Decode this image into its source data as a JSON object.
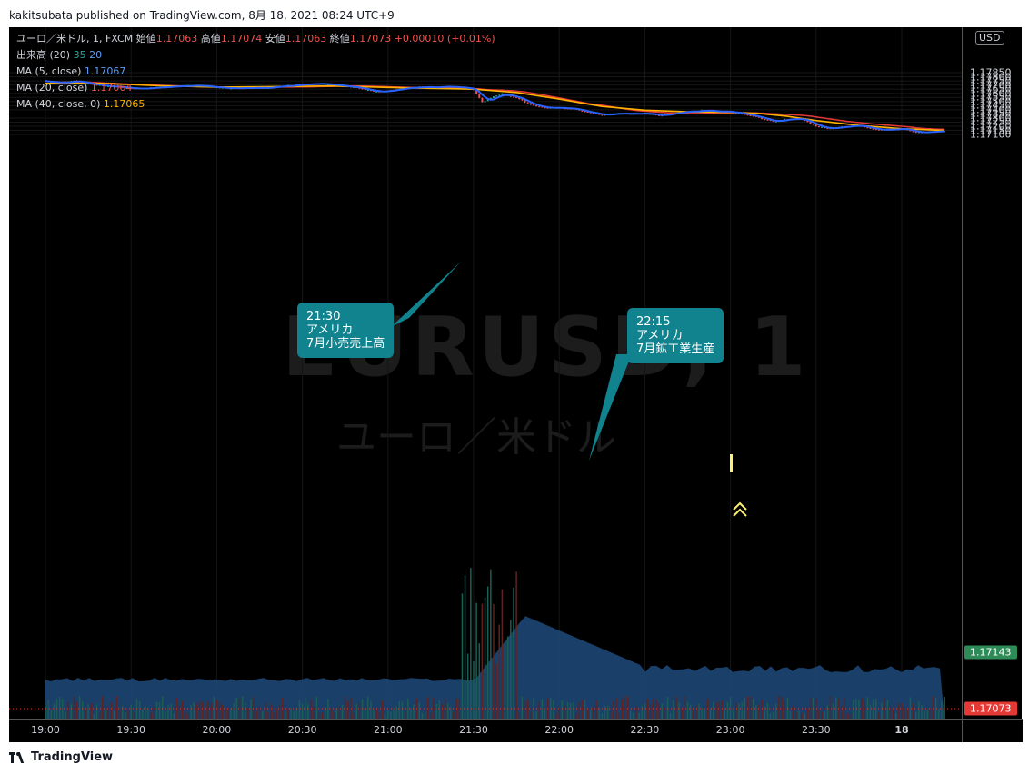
{
  "header": {
    "text": "kakitsubata published on TradingView.com, 8月 18, 2021 08:24 UTC+9"
  },
  "footer": {
    "brand": "TradingView"
  },
  "legend": {
    "symbol": "ユーロ／米ドル, 1, FXCM",
    "open_label": "始値",
    "open": "1.17063",
    "high_label": "高値",
    "high": "1.17074",
    "low_label": "安値",
    "low": "1.17063",
    "close_label": "終値",
    "close": "1.17073",
    "change": "+0.00010 (+0.01%)",
    "volume_label": "出来高 (20)",
    "volume_value": "35",
    "volume_ma": "20",
    "ma5_label": "MA (5, close)",
    "ma5_value": "1.17067",
    "ma20_label": "MA (20, close)",
    "ma20_value": "1.17064",
    "ma40_label": "MA (40, close, 0)",
    "ma40_value": "1.17065"
  },
  "watermark": {
    "symbol": "EURUSD, 1",
    "name": "ユーロ／米ドル"
  },
  "callouts": [
    {
      "time": "21:30",
      "country": "アメリカ",
      "event": "7月小売売上高"
    },
    {
      "time": "22:15",
      "country": "アメリカ",
      "event": "7月鉱工業生産"
    }
  ],
  "price_axis": {
    "currency": "USD",
    "ticks": [
      "1.17850",
      "1.17800",
      "1.17750",
      "1.17700",
      "1.17650",
      "1.17600",
      "1.17550",
      "1.17500",
      "1.17450",
      "1.17400",
      "1.17350",
      "1.17300",
      "1.17250",
      "1.17200",
      "1.17150",
      "1.17100"
    ],
    "current_price": "1.17143",
    "last_close": "1.17073"
  },
  "time_axis": {
    "ticks": [
      "19:00",
      "19:30",
      "20:00",
      "20:30",
      "21:00",
      "21:30",
      "22:00",
      "22:30",
      "23:00",
      "23:30",
      "18"
    ]
  },
  "colors": {
    "up": "#26a69a",
    "down": "#ef5350",
    "ma5": "#2962ff",
    "ma20": "#e53935",
    "ma40": "#ffb300",
    "volume_area": "#1e4a7a",
    "callout": "#10838f"
  },
  "chart_data": {
    "type": "candlestick",
    "interval": "1 minute",
    "x_unit": "time (UTC+9)",
    "ylim": [
      1.1707,
      1.179
    ],
    "price_path": [
      [
        "19:00",
        1.17748
      ],
      [
        "19:05",
        1.17725
      ],
      [
        "19:10",
        1.17748
      ],
      [
        "19:15",
        1.17715
      ],
      [
        "19:20",
        1.1769
      ],
      [
        "19:25",
        1.1768
      ],
      [
        "19:30",
        1.17655
      ],
      [
        "19:35",
        1.1766
      ],
      [
        "19:40",
        1.17672
      ],
      [
        "19:45",
        1.17685
      ],
      [
        "19:50",
        1.1769
      ],
      [
        "19:55",
        1.17692
      ],
      [
        "20:00",
        1.17668
      ],
      [
        "20:05",
        1.1766
      ],
      [
        "20:10",
        1.17665
      ],
      [
        "20:15",
        1.17663
      ],
      [
        "20:20",
        1.17675
      ],
      [
        "20:25",
        1.1769
      ],
      [
        "20:30",
        1.1771
      ],
      [
        "20:35",
        1.17718
      ],
      [
        "20:40",
        1.17705
      ],
      [
        "20:45",
        1.17685
      ],
      [
        "20:50",
        1.1766
      ],
      [
        "20:55",
        1.17618
      ],
      [
        "21:00",
        1.17628
      ],
      [
        "21:05",
        1.17655
      ],
      [
        "21:10",
        1.17672
      ],
      [
        "21:15",
        1.17675
      ],
      [
        "21:20",
        1.1768
      ],
      [
        "21:25",
        1.17675
      ],
      [
        "21:30",
        1.17645
      ],
      [
        "21:33",
        1.17495
      ],
      [
        "21:37",
        1.1756
      ],
      [
        "21:40",
        1.1759
      ],
      [
        "21:45",
        1.17545
      ],
      [
        "21:50",
        1.1746
      ],
      [
        "21:55",
        1.1742
      ],
      [
        "22:00",
        1.17425
      ],
      [
        "22:05",
        1.1741
      ],
      [
        "22:10",
        1.1737
      ],
      [
        "22:15",
        1.17335
      ],
      [
        "22:20",
        1.17355
      ],
      [
        "22:25",
        1.1735
      ],
      [
        "22:30",
        1.1736
      ],
      [
        "22:35",
        1.1733
      ],
      [
        "22:40",
        1.1736
      ],
      [
        "22:45",
        1.1738
      ],
      [
        "22:50",
        1.1739
      ],
      [
        "22:55",
        1.1738
      ],
      [
        "23:00",
        1.17372
      ],
      [
        "23:05",
        1.17345
      ],
      [
        "23:10",
        1.173
      ],
      [
        "23:15",
        1.17255
      ],
      [
        "23:20",
        1.17285
      ],
      [
        "23:25",
        1.1729
      ],
      [
        "23:30",
        1.172
      ],
      [
        "23:35",
        1.1717
      ],
      [
        "23:40",
        1.172
      ],
      [
        "23:45",
        1.1721
      ],
      [
        "23:50",
        1.1716
      ],
      [
        "23:55",
        1.1716
      ],
      [
        "00:00",
        1.1717
      ],
      [
        "00:05",
        1.1713
      ],
      [
        "00:10",
        1.1713
      ],
      [
        "00:15",
        1.17143
      ]
    ],
    "ma40_path": [
      [
        "19:00",
        1.1772
      ],
      [
        "19:20",
        1.1772
      ],
      [
        "19:40",
        1.1769
      ],
      [
        "20:00",
        1.17675
      ],
      [
        "20:20",
        1.1768
      ],
      [
        "20:40",
        1.17688
      ],
      [
        "21:00",
        1.1767
      ],
      [
        "21:15",
        1.1766
      ],
      [
        "21:30",
        1.1765
      ],
      [
        "21:45",
        1.1761
      ],
      [
        "22:00",
        1.1753
      ],
      [
        "22:15",
        1.1744
      ],
      [
        "22:30",
        1.17395
      ],
      [
        "22:45",
        1.17375
      ],
      [
        "23:00",
        1.1737
      ],
      [
        "23:10",
        1.17355
      ],
      [
        "23:20",
        1.1732
      ],
      [
        "23:30",
        1.1727
      ],
      [
        "23:45",
        1.1721
      ],
      [
        "00:00",
        1.1717
      ],
      [
        "00:15",
        1.1715
      ]
    ]
  }
}
